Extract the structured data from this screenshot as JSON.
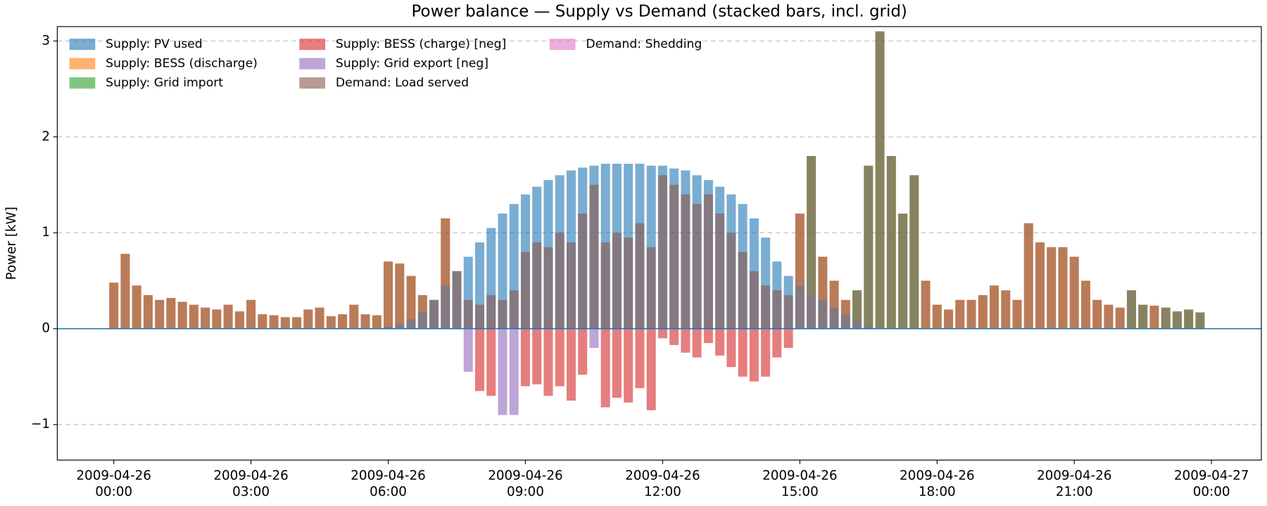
{
  "chart_data": {
    "type": "bar",
    "title": "Power balance — Supply vs Demand (stacked bars, incl. grid)",
    "y_label": "Power [kW]",
    "x": [
      0,
      0.25,
      0.5,
      0.75,
      1,
      1.25,
      1.5,
      1.75,
      2,
      2.25,
      2.5,
      2.75,
      3,
      3.25,
      3.5,
      3.75,
      4,
      4.25,
      4.5,
      4.75,
      5,
      5.25,
      5.5,
      5.75,
      6,
      6.25,
      6.5,
      6.75,
      7,
      7.25,
      7.5,
      7.75,
      8,
      8.25,
      8.5,
      8.75,
      9,
      9.25,
      9.5,
      9.75,
      10,
      10.25,
      10.5,
      10.75,
      11,
      11.25,
      11.5,
      11.75,
      12,
      12.25,
      12.5,
      12.75,
      13,
      13.25,
      13.5,
      13.75,
      14,
      14.25,
      14.5,
      14.75,
      15,
      15.25,
      15.5,
      15.75,
      16,
      16.25,
      16.5,
      16.75,
      17,
      17.25,
      17.5,
      17.75,
      18,
      18.25,
      18.5,
      18.75,
      19,
      19.25,
      19.5,
      19.75,
      20,
      20.25,
      20.5,
      20.75,
      21,
      21.25,
      21.5,
      21.75,
      22,
      22.25,
      22.5,
      22.75,
      23,
      23.25,
      23.5,
      23.75
    ],
    "xlim": [
      -1.235,
      25.09
    ],
    "xticks": [
      {
        "value": 0,
        "label": "2009-04-26 00:00"
      },
      {
        "value": 3,
        "label": "2009-04-26 03:00"
      },
      {
        "value": 6,
        "label": "2009-04-26 06:00"
      },
      {
        "value": 9,
        "label": "2009-04-26 09:00"
      },
      {
        "value": 12,
        "label": "2009-04-26 12:00"
      },
      {
        "value": 15,
        "label": "2009-04-26 15:00"
      },
      {
        "value": 18,
        "label": "2009-04-26 18:00"
      },
      {
        "value": 21,
        "label": "2009-04-26 21:00"
      },
      {
        "value": 24,
        "label": "2009-04-27 00:00"
      }
    ],
    "ylim": [
      -1.37,
      3.15
    ],
    "yticks": [
      {
        "value": -1,
        "label": "−1"
      },
      0,
      1,
      2,
      3
    ],
    "grid": true,
    "legend": "upper left",
    "series": [
      {
        "name": "Supply: PV used",
        "color": "#1f77b4",
        "stack": "supply",
        "values": [
          0,
          0,
          0,
          0,
          0,
          0,
          0,
          0,
          0,
          0,
          0,
          0,
          0,
          0,
          0,
          0,
          0,
          0,
          0,
          0,
          0,
          0,
          0,
          0,
          0.02,
          0.05,
          0.1,
          0.18,
          0.3,
          0.45,
          0.6,
          0.75,
          0.9,
          1.05,
          1.2,
          1.3,
          1.4,
          1.48,
          1.55,
          1.6,
          1.65,
          1.68,
          1.7,
          1.72,
          1.72,
          1.72,
          1.72,
          1.7,
          1.7,
          1.67,
          1.65,
          1.6,
          1.55,
          1.48,
          1.4,
          1.3,
          1.15,
          0.95,
          0.7,
          0.55,
          0.45,
          0.35,
          0.3,
          0.22,
          0.15,
          0.08,
          0.03,
          0.01,
          0,
          0,
          0,
          0,
          0,
          0,
          0,
          0,
          0,
          0,
          0,
          0,
          0,
          0,
          0,
          0,
          0,
          0,
          0,
          0,
          0,
          0,
          0,
          0,
          0,
          0,
          0,
          0
        ]
      },
      {
        "name": "Supply: BESS (discharge)",
        "color": "#ff7f0e",
        "stack": "supply",
        "values": [
          0.48,
          0.78,
          0.45,
          0.35,
          0.3,
          0.32,
          0.28,
          0.25,
          0.22,
          0.2,
          0.25,
          0.18,
          0.3,
          0.15,
          0.14,
          0.12,
          0.12,
          0.2,
          0.22,
          0.13,
          0.15,
          0.25,
          0.15,
          0.14,
          0.68,
          0.63,
          0.45,
          0.17,
          0,
          0.7,
          0,
          0,
          0,
          0,
          0,
          0,
          0,
          0,
          0,
          0,
          0,
          0,
          0,
          0,
          0,
          0,
          0,
          0,
          0,
          0,
          0,
          0,
          0,
          0,
          0,
          0,
          0,
          0,
          0,
          0,
          0.75,
          0,
          0.45,
          0.28,
          0.15,
          0,
          0,
          0,
          0,
          0,
          0,
          0.5,
          0.25,
          0.2,
          0.3,
          0.3,
          0.35,
          0.45,
          0.4,
          0.3,
          1.1,
          0.9,
          0.85,
          0.85,
          0.75,
          0.5,
          0.3,
          0.25,
          0.22,
          0,
          0,
          0.24,
          0,
          0,
          0,
          0
        ]
      },
      {
        "name": "Supply: Grid import",
        "color": "#2ca02c",
        "stack": "supply",
        "values": [
          0,
          0,
          0,
          0,
          0,
          0,
          0,
          0,
          0,
          0,
          0,
          0,
          0,
          0,
          0,
          0,
          0,
          0,
          0,
          0,
          0,
          0,
          0,
          0,
          0,
          0,
          0,
          0,
          0,
          0,
          0,
          0,
          0,
          0,
          0,
          0,
          0,
          0,
          0,
          0,
          0,
          0,
          0,
          0,
          0,
          0,
          0,
          0,
          0,
          0,
          0,
          0,
          0,
          0,
          0,
          0,
          0,
          0,
          0,
          0,
          0,
          1.45,
          0,
          0,
          0,
          0.32,
          1.67,
          3.09,
          1.8,
          1.2,
          1.6,
          0,
          0,
          0,
          0,
          0,
          0,
          0,
          0,
          0,
          0,
          0,
          0,
          0,
          0,
          0,
          0,
          0,
          0,
          0.4,
          0.25,
          0,
          0.22,
          0.18,
          0.2,
          0.17
        ]
      },
      {
        "name": "Supply: BESS (charge) [neg]",
        "color": "#d62728",
        "stack": "supply",
        "values": [
          0,
          0,
          0,
          0,
          0,
          0,
          0,
          0,
          0,
          0,
          0,
          0,
          0,
          0,
          0,
          0,
          0,
          0,
          0,
          0,
          0,
          0,
          0,
          0,
          0,
          0,
          0,
          0,
          0,
          0,
          0,
          0,
          -0.65,
          -0.7,
          0,
          0,
          -0.6,
          -0.58,
          -0.7,
          -0.6,
          -0.75,
          -0.48,
          0,
          -0.82,
          -0.72,
          -0.77,
          -0.62,
          -0.85,
          -0.1,
          -0.17,
          -0.25,
          -0.3,
          -0.15,
          -0.28,
          -0.4,
          -0.5,
          -0.55,
          -0.5,
          -0.3,
          -0.2,
          0,
          0,
          0,
          0,
          0,
          0,
          0,
          0,
          0,
          0,
          0,
          0,
          0,
          0,
          0,
          0,
          0,
          0,
          0,
          0,
          0,
          0,
          0,
          0,
          0,
          0,
          0,
          0,
          0,
          0,
          0,
          0,
          0,
          0,
          0,
          0
        ]
      },
      {
        "name": "Supply: Grid export [neg]",
        "color": "#9467bd",
        "stack": "supply",
        "values": [
          0,
          0,
          0,
          0,
          0,
          0,
          0,
          0,
          0,
          0,
          0,
          0,
          0,
          0,
          0,
          0,
          0,
          0,
          0,
          0,
          0,
          0,
          0,
          0,
          0,
          0,
          0,
          0,
          0,
          0,
          0,
          -0.45,
          0,
          0,
          -0.9,
          -0.9,
          0,
          0,
          0,
          0,
          0,
          0,
          -0.2,
          0,
          0,
          0,
          0,
          0,
          0,
          0,
          0,
          0,
          0,
          0,
          0,
          0,
          0,
          0,
          0,
          0,
          0,
          0,
          0,
          0,
          0,
          0,
          0,
          0,
          0,
          0,
          0,
          0,
          0,
          0,
          0,
          0,
          0,
          0,
          0,
          0,
          0,
          0,
          0,
          0,
          0,
          0,
          0,
          0,
          0,
          0,
          0,
          0,
          0,
          0,
          0,
          0
        ]
      },
      {
        "name": "Demand: Load served",
        "color": "#8c564b",
        "stack": "demand",
        "values": [
          0.48,
          0.78,
          0.45,
          0.35,
          0.3,
          0.32,
          0.28,
          0.25,
          0.22,
          0.2,
          0.25,
          0.18,
          0.3,
          0.15,
          0.14,
          0.12,
          0.12,
          0.2,
          0.22,
          0.13,
          0.15,
          0.25,
          0.15,
          0.14,
          0.7,
          0.68,
          0.55,
          0.35,
          0.3,
          1.15,
          0.6,
          0.3,
          0.25,
          0.35,
          0.3,
          0.4,
          0.8,
          0.9,
          0.85,
          1.0,
          0.9,
          1.2,
          1.5,
          0.9,
          1.0,
          0.95,
          1.1,
          0.85,
          1.6,
          1.5,
          1.4,
          1.3,
          1.4,
          1.2,
          1.0,
          0.8,
          0.6,
          0.45,
          0.4,
          0.35,
          1.2,
          1.8,
          0.75,
          0.5,
          0.3,
          0.4,
          1.7,
          3.1,
          1.8,
          1.2,
          1.6,
          0.5,
          0.25,
          0.2,
          0.3,
          0.3,
          0.35,
          0.45,
          0.4,
          0.3,
          1.1,
          0.9,
          0.85,
          0.85,
          0.75,
          0.5,
          0.3,
          0.25,
          0.22,
          0.4,
          0.25,
          0.24,
          0.22,
          0.18,
          0.2,
          0.17
        ]
      },
      {
        "name": "Demand: Shedding",
        "color": "#e377c2",
        "stack": "demand",
        "values": [
          0,
          0,
          0,
          0,
          0,
          0,
          0,
          0,
          0,
          0,
          0,
          0,
          0,
          0,
          0,
          0,
          0,
          0,
          0,
          0,
          0,
          0,
          0,
          0,
          0,
          0,
          0,
          0,
          0,
          0,
          0,
          0,
          0,
          0,
          0,
          0,
          0,
          0,
          0,
          0,
          0,
          0,
          0,
          0,
          0,
          0,
          0,
          0,
          0,
          0,
          0,
          0,
          0,
          0,
          0,
          0,
          0,
          0,
          0,
          0,
          0,
          0,
          0,
          0,
          0,
          0,
          0,
          0,
          0,
          0,
          0,
          0,
          0,
          0,
          0,
          0,
          0,
          0,
          0,
          0,
          0,
          0,
          0,
          0,
          0,
          0,
          0,
          0,
          0,
          0,
          0,
          0,
          0,
          0,
          0,
          0
        ]
      }
    ]
  }
}
